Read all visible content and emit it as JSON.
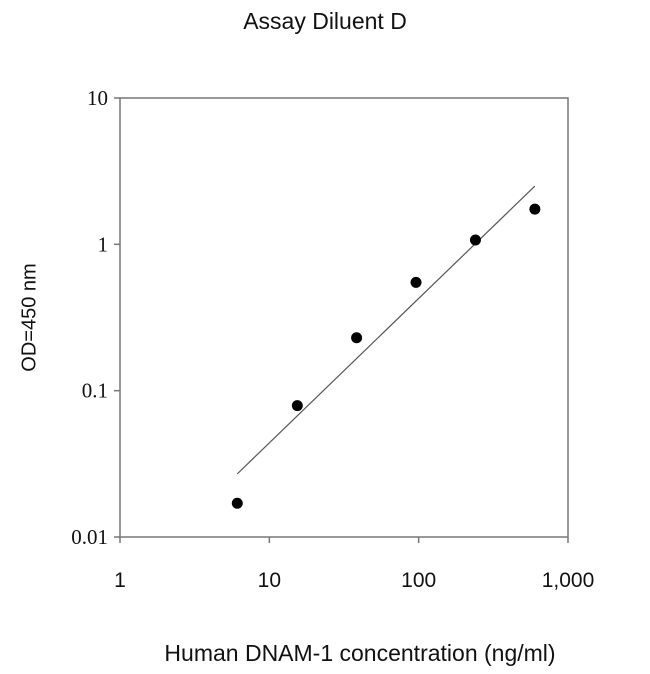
{
  "chart_data": {
    "type": "scatter",
    "title": "Assay Diluent D",
    "xlabel": "Human DNAM-1 concentration (ng/ml)",
    "ylabel": "OD=450 nm",
    "x_scale": "log",
    "y_scale": "log",
    "xlim": [
      1,
      1000
    ],
    "ylim": [
      0.01,
      10
    ],
    "x_ticks": [
      "1",
      "10",
      "100",
      "1,000"
    ],
    "y_ticks": [
      "10",
      "1",
      "0.1",
      "0.01"
    ],
    "grid": false,
    "legend": null,
    "series": [
      {
        "name": "Standard points",
        "marker": "filled-circle",
        "color": "#000000",
        "x": [
          6.1,
          15.4,
          38.4,
          96,
          240,
          600
        ],
        "y": [
          0.017,
          0.079,
          0.23,
          0.55,
          1.07,
          1.74
        ]
      },
      {
        "name": "Fit line",
        "type": "line",
        "color": "#555555",
        "x": [
          6.1,
          600
        ],
        "y": [
          0.027,
          2.5
        ]
      }
    ]
  }
}
